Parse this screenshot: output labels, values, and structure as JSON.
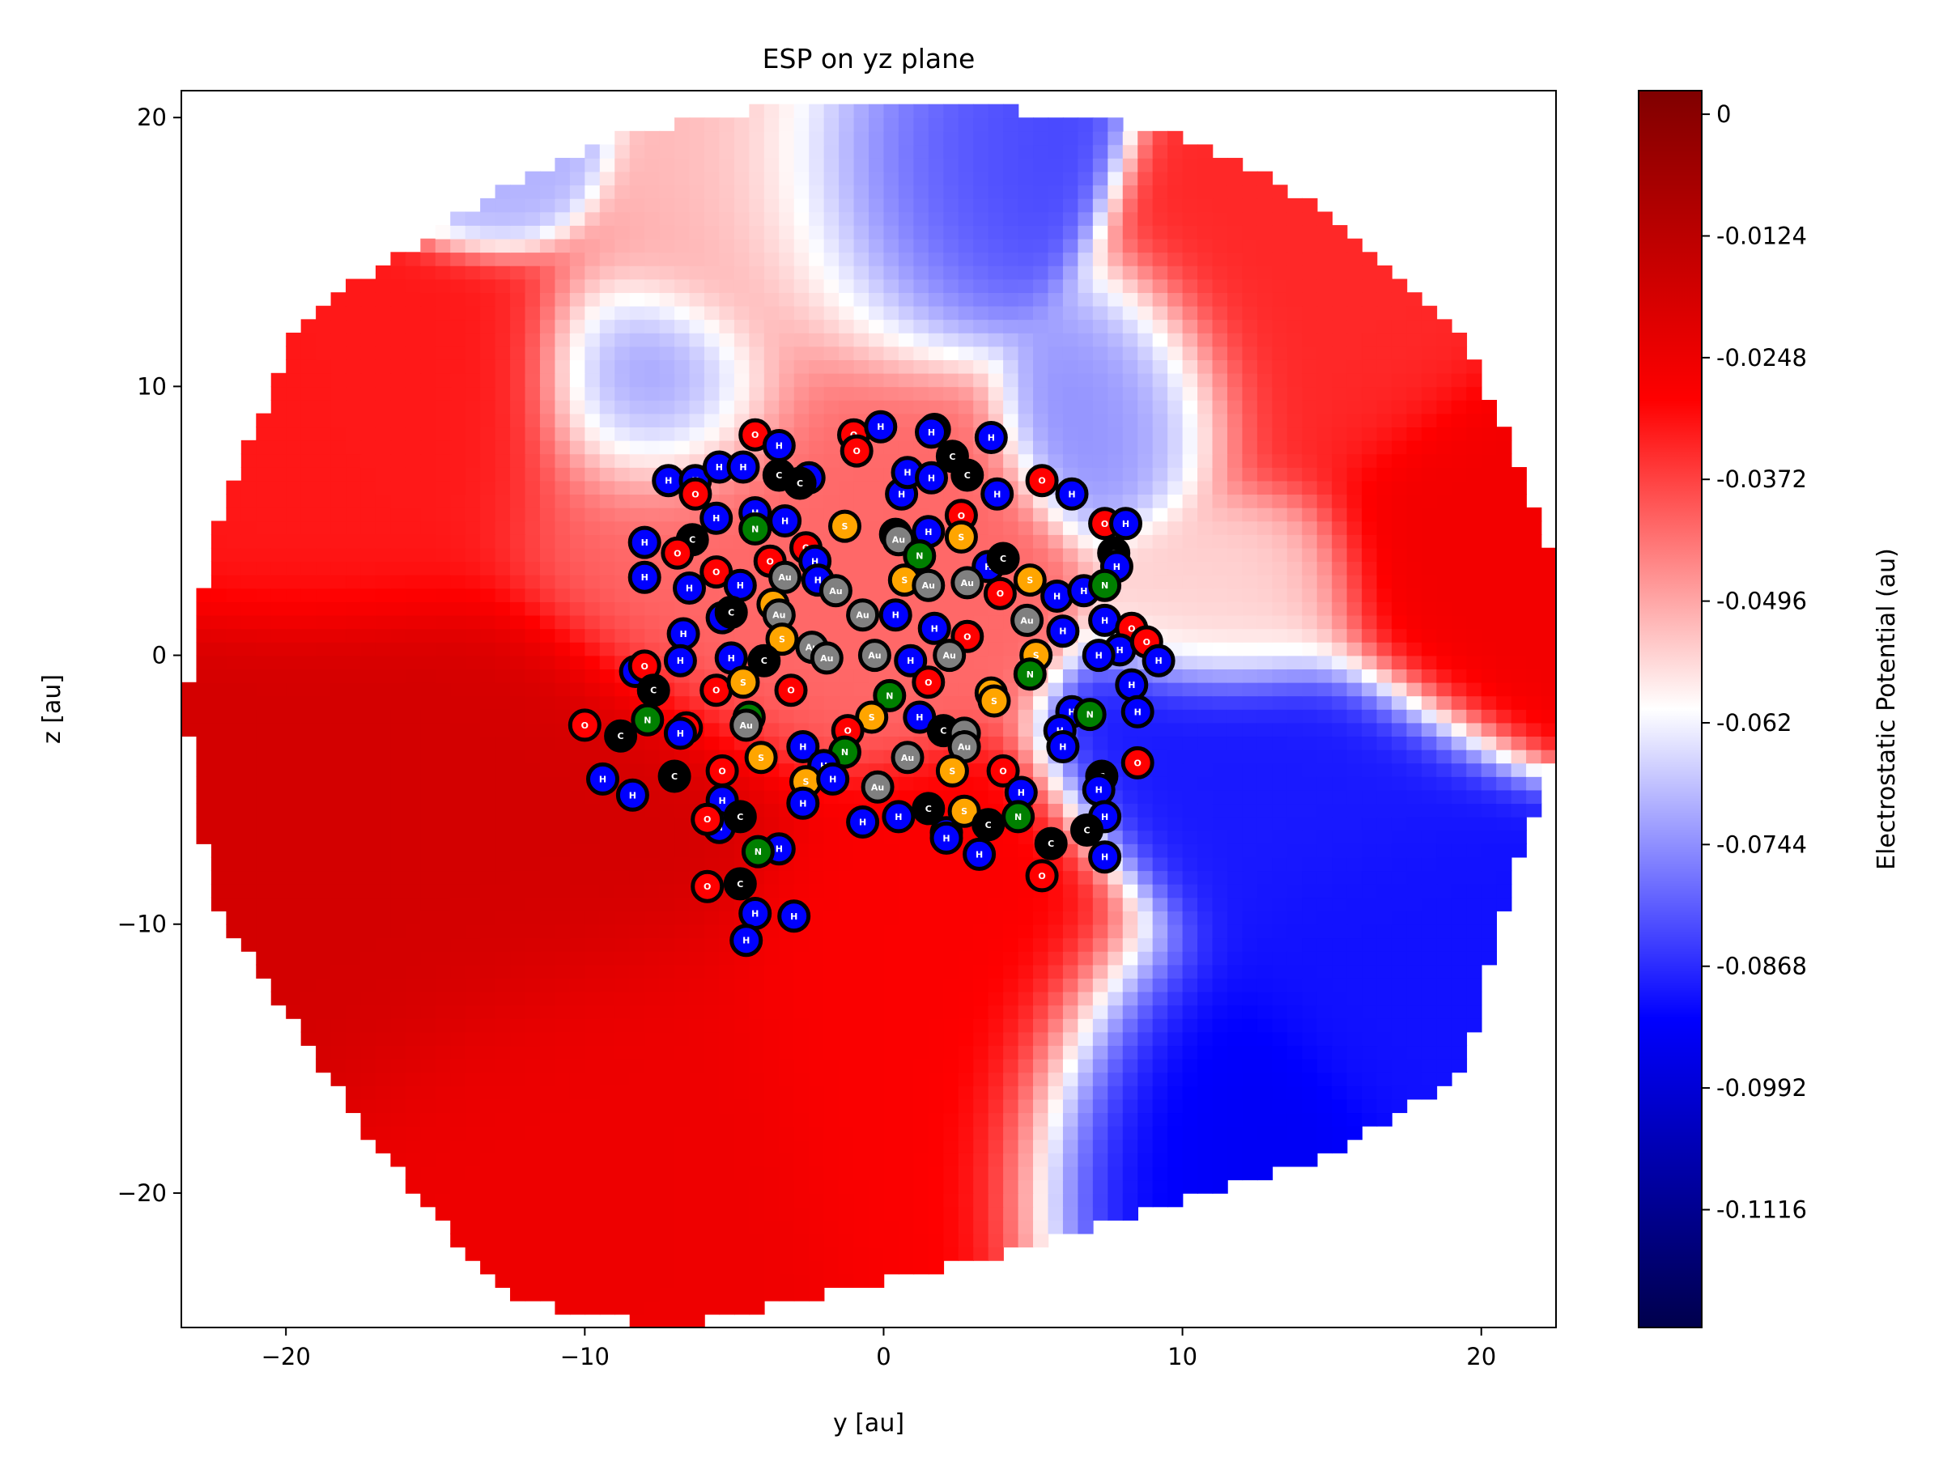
{
  "chart_data": {
    "type": "heatmap",
    "title": "ESP on yz plane",
    "xlabel": "y [au]",
    "ylabel": "z [au]",
    "xlim": [
      -23.5,
      22.5
    ],
    "ylim": [
      -25,
      21
    ],
    "xticks": [
      -20,
      -10,
      0,
      10,
      20
    ],
    "yticks": [
      -20,
      -10,
      0,
      10,
      20
    ],
    "grid": false,
    "colormap": "seismic",
    "colors": {
      "low": "#00004c",
      "mid_low": "#0000ff",
      "mid": "#ffffff",
      "mid_high": "#ff0000",
      "high": "#800000",
      "axes": "#000000",
      "background": "#ffffff"
    },
    "colorbar": {
      "label": "Electrostatic Potential (au)",
      "range": [
        -0.1236,
        0.0024
      ],
      "ticks": [
        0,
        -0.0124,
        -0.0248,
        -0.0372,
        -0.0496,
        -0.062,
        -0.0744,
        -0.0868,
        -0.0992,
        -0.1116
      ],
      "tick_labels": [
        "0",
        "-0.0124",
        "-0.0248",
        "-0.0372",
        "-0.0496",
        "-0.062",
        "-0.0744",
        "-0.0868",
        "-0.0992",
        "-0.1116"
      ]
    },
    "atom_colors": {
      "H": "#0000ff",
      "C": "#000000",
      "N": "#008000",
      "O": "#ff0000",
      "S": "#ffa500",
      "Au": "#808080"
    },
    "field_centers": [
      {
        "y": -14.5,
        "z": -7.5,
        "v": -0.0182,
        "s": 5.5
      },
      {
        "y": -9.5,
        "z": -17,
        "v": -0.025,
        "s": 4.5
      },
      {
        "y": 2,
        "z": -14,
        "v": -0.028,
        "s": 4.5
      },
      {
        "y": 19.5,
        "z": 3.5,
        "v": -0.026,
        "s": 3.5
      },
      {
        "y": -17,
        "z": 8,
        "v": -0.032,
        "s": 4
      },
      {
        "y": -4.5,
        "z": 6,
        "v": -0.042,
        "s": 5
      },
      {
        "y": 13.5,
        "z": 11,
        "v": -0.034,
        "s": 3.5
      },
      {
        "y": -2.5,
        "z": 15,
        "v": -0.052,
        "s": 3.5
      },
      {
        "y": 13.5,
        "z": -5,
        "v": -0.089,
        "s": 3.5
      },
      {
        "y": 9.5,
        "z": -16.5,
        "v": -0.094,
        "s": 3.5
      },
      {
        "y": 0.5,
        "z": 16,
        "v": -0.085,
        "s": 3
      },
      {
        "y": -7,
        "z": 9.5,
        "v": -0.082,
        "s": 2.5
      },
      {
        "y": 8.5,
        "z": 9.5,
        "v": -0.075,
        "s": 2.5
      },
      {
        "y": -13.5,
        "z": 19,
        "v": -0.07,
        "s": 2
      },
      {
        "y": 12.5,
        "z": 2.5,
        "v": -0.055,
        "s": 2.5
      },
      {
        "y": 16.5,
        "z": -11,
        "v": -0.09,
        "s": 3.5
      }
    ],
    "atoms": [
      {
        "el": "O",
        "y": -4.3,
        "z": 8.2
      },
      {
        "el": "H",
        "y": -3.5,
        "z": 7.8
      },
      {
        "el": "O",
        "y": -1.0,
        "z": 8.2
      },
      {
        "el": "O",
        "y": -0.9,
        "z": 7.6
      },
      {
        "el": "H",
        "y": -0.1,
        "z": 8.5
      },
      {
        "el": "H",
        "y": 1.7,
        "z": 8.4
      },
      {
        "el": "H",
        "y": 1.6,
        "z": 8.3
      },
      {
        "el": "H",
        "y": 3.6,
        "z": 8.1
      },
      {
        "el": "C",
        "y": 2.3,
        "z": 7.4
      },
      {
        "el": "H",
        "y": -7.2,
        "z": 6.5
      },
      {
        "el": "H",
        "y": -6.3,
        "z": 6.5
      },
      {
        "el": "H",
        "y": -5.5,
        "z": 7.0
      },
      {
        "el": "H",
        "y": -4.7,
        "z": 7.0
      },
      {
        "el": "C",
        "y": -3.5,
        "z": 6.7
      },
      {
        "el": "H",
        "y": -2.5,
        "z": 6.6
      },
      {
        "el": "C",
        "y": -2.8,
        "z": 6.4
      },
      {
        "el": "H",
        "y": 0.6,
        "z": 6.0
      },
      {
        "el": "H",
        "y": 0.8,
        "z": 6.8
      },
      {
        "el": "H",
        "y": 1.6,
        "z": 6.6
      },
      {
        "el": "C",
        "y": 2.8,
        "z": 6.7
      },
      {
        "el": "H",
        "y": 3.8,
        "z": 6.0
      },
      {
        "el": "O",
        "y": 5.3,
        "z": 6.5
      },
      {
        "el": "H",
        "y": 6.3,
        "z": 6.0
      },
      {
        "el": "O",
        "y": -6.3,
        "z": 6.0
      },
      {
        "el": "H",
        "y": -5.6,
        "z": 5.1
      },
      {
        "el": "H",
        "y": -4.3,
        "z": 5.3
      },
      {
        "el": "H",
        "y": -3.3,
        "z": 5.0
      },
      {
        "el": "S",
        "y": -1.3,
        "z": 4.8
      },
      {
        "el": "C",
        "y": 0.4,
        "z": 4.5
      },
      {
        "el": "H",
        "y": 1.5,
        "z": 4.6
      },
      {
        "el": "O",
        "y": 2.6,
        "z": 5.2
      },
      {
        "el": "O",
        "y": 7.4,
        "z": 4.9
      },
      {
        "el": "H",
        "y": 8.1,
        "z": 4.9
      },
      {
        "el": "H",
        "y": -8.0,
        "z": 4.2
      },
      {
        "el": "C",
        "y": -6.4,
        "z": 4.3
      },
      {
        "el": "N",
        "y": -4.3,
        "z": 4.7
      },
      {
        "el": "O",
        "y": -3.8,
        "z": 3.5
      },
      {
        "el": "O",
        "y": -2.6,
        "z": 4.0
      },
      {
        "el": "H",
        "y": -2.3,
        "z": 3.5
      },
      {
        "el": "Au",
        "y": 0.5,
        "z": 4.3
      },
      {
        "el": "S",
        "y": 2.6,
        "z": 4.4
      },
      {
        "el": "N",
        "y": 1.2,
        "z": 3.7
      },
      {
        "el": "H",
        "y": 3.5,
        "z": 3.3
      },
      {
        "el": "C",
        "y": 4.0,
        "z": 3.6
      },
      {
        "el": "C",
        "y": 7.7,
        "z": 3.8
      },
      {
        "el": "H",
        "y": 7.8,
        "z": 3.3
      },
      {
        "el": "O",
        "y": -6.9,
        "z": 3.8
      },
      {
        "el": "O",
        "y": -5.6,
        "z": 3.1
      },
      {
        "el": "H",
        "y": -8.0,
        "z": 2.9
      },
      {
        "el": "H",
        "y": -6.5,
        "z": 2.5
      },
      {
        "el": "H",
        "y": -4.8,
        "z": 2.6
      },
      {
        "el": "Au",
        "y": -3.3,
        "z": 2.9
      },
      {
        "el": "H",
        "y": -2.2,
        "z": 2.8
      },
      {
        "el": "Au",
        "y": -1.6,
        "z": 2.4
      },
      {
        "el": "S",
        "y": 0.7,
        "z": 2.8
      },
      {
        "el": "Au",
        "y": 1.5,
        "z": 2.6
      },
      {
        "el": "Au",
        "y": 2.8,
        "z": 2.7
      },
      {
        "el": "O",
        "y": 3.9,
        "z": 2.3
      },
      {
        "el": "S",
        "y": 4.9,
        "z": 2.8
      },
      {
        "el": "H",
        "y": 5.8,
        "z": 2.2
      },
      {
        "el": "H",
        "y": 6.7,
        "z": 2.4
      },
      {
        "el": "N",
        "y": 7.4,
        "z": 2.6
      },
      {
        "el": "S",
        "y": -3.7,
        "z": 1.9
      },
      {
        "el": "H",
        "y": -5.4,
        "z": 1.4
      },
      {
        "el": "C",
        "y": -5.1,
        "z": 1.6
      },
      {
        "el": "Au",
        "y": -3.5,
        "z": 1.5
      },
      {
        "el": "Au",
        "y": -0.7,
        "z": 1.5
      },
      {
        "el": "H",
        "y": 0.4,
        "z": 1.5
      },
      {
        "el": "Au",
        "y": 4.8,
        "z": 1.3
      },
      {
        "el": "H",
        "y": 6.0,
        "z": 0.9
      },
      {
        "el": "H",
        "y": 7.4,
        "z": 1.3
      },
      {
        "el": "O",
        "y": 8.3,
        "z": 1.0
      },
      {
        "el": "H",
        "y": -6.7,
        "z": 0.8
      },
      {
        "el": "S",
        "y": -3.4,
        "z": 0.6
      },
      {
        "el": "Au",
        "y": -2.4,
        "z": 0.3
      },
      {
        "el": "H",
        "y": 1.7,
        "z": 1.0
      },
      {
        "el": "O",
        "y": 2.8,
        "z": 0.7
      },
      {
        "el": "H",
        "y": 7.9,
        "z": 0.2
      },
      {
        "el": "O",
        "y": 8.8,
        "z": 0.5
      },
      {
        "el": "H",
        "y": -8.3,
        "z": -0.6
      },
      {
        "el": "H",
        "y": -6.8,
        "z": -0.2
      },
      {
        "el": "H",
        "y": -5.1,
        "z": -0.1
      },
      {
        "el": "C",
        "y": -4.0,
        "z": -0.2
      },
      {
        "el": "Au",
        "y": -1.9,
        "z": -0.1
      },
      {
        "el": "Au",
        "y": -0.3,
        "z": 0.0
      },
      {
        "el": "H",
        "y": 0.9,
        "z": -0.2
      },
      {
        "el": "Au",
        "y": 2.2,
        "z": 0.0
      },
      {
        "el": "S",
        "y": 5.1,
        "z": 0.0
      },
      {
        "el": "H",
        "y": 7.2,
        "z": 0.0
      },
      {
        "el": "H",
        "y": 9.2,
        "z": -0.2
      },
      {
        "el": "O",
        "y": -8.0,
        "z": -0.4
      },
      {
        "el": "C",
        "y": -7.7,
        "z": -1.3
      },
      {
        "el": "O",
        "y": -5.6,
        "z": -1.3
      },
      {
        "el": "S",
        "y": -4.7,
        "z": -1.0
      },
      {
        "el": "O",
        "y": -3.1,
        "z": -1.3
      },
      {
        "el": "N",
        "y": 0.2,
        "z": -1.5
      },
      {
        "el": "O",
        "y": 1.5,
        "z": -1.0
      },
      {
        "el": "S",
        "y": 3.6,
        "z": -1.4
      },
      {
        "el": "N",
        "y": 4.9,
        "z": -0.7
      },
      {
        "el": "H",
        "y": 8.3,
        "z": -1.1
      },
      {
        "el": "O",
        "y": -10.0,
        "z": -2.6
      },
      {
        "el": "C",
        "y": -8.8,
        "z": -3.0
      },
      {
        "el": "N",
        "y": -7.9,
        "z": -2.4
      },
      {
        "el": "O",
        "y": -6.6,
        "z": -2.7
      },
      {
        "el": "N",
        "y": -4.5,
        "z": -2.3
      },
      {
        "el": "S",
        "y": -0.4,
        "z": -2.3
      },
      {
        "el": "H",
        "y": 1.2,
        "z": -2.3
      },
      {
        "el": "S",
        "y": 3.7,
        "z": -1.7
      },
      {
        "el": "H",
        "y": 6.3,
        "z": -2.1
      },
      {
        "el": "N",
        "y": 6.9,
        "z": -2.2
      },
      {
        "el": "H",
        "y": 8.5,
        "z": -2.1
      },
      {
        "el": "H",
        "y": -6.8,
        "z": -2.9
      },
      {
        "el": "Au",
        "y": -4.6,
        "z": -2.6
      },
      {
        "el": "H",
        "y": -2.7,
        "z": -3.4
      },
      {
        "el": "O",
        "y": -1.2,
        "z": -2.8
      },
      {
        "el": "C",
        "y": 2.0,
        "z": -2.8
      },
      {
        "el": "Au",
        "y": 2.7,
        "z": -2.9
      },
      {
        "el": "H",
        "y": 5.9,
        "z": -2.8
      },
      {
        "el": "H",
        "y": -9.4,
        "z": -4.6
      },
      {
        "el": "H",
        "y": -8.4,
        "z": -5.2
      },
      {
        "el": "C",
        "y": -7.0,
        "z": -4.5
      },
      {
        "el": "O",
        "y": -5.4,
        "z": -4.3
      },
      {
        "el": "S",
        "y": -4.1,
        "z": -3.8
      },
      {
        "el": "N",
        "y": -1.3,
        "z": -3.6
      },
      {
        "el": "H",
        "y": -2.0,
        "z": -4.1
      },
      {
        "el": "Au",
        "y": 0.8,
        "z": -3.8
      },
      {
        "el": "Au",
        "y": 2.7,
        "z": -3.4
      },
      {
        "el": "S",
        "y": 2.3,
        "z": -4.3
      },
      {
        "el": "O",
        "y": 4.0,
        "z": -4.3
      },
      {
        "el": "H",
        "y": 6.0,
        "z": -3.4
      },
      {
        "el": "O",
        "y": 8.5,
        "z": -4.0
      },
      {
        "el": "H",
        "y": -5.4,
        "z": -5.4
      },
      {
        "el": "S",
        "y": -2.6,
        "z": -4.7
      },
      {
        "el": "H",
        "y": -1.7,
        "z": -4.6
      },
      {
        "el": "Au",
        "y": -0.2,
        "z": -4.9
      },
      {
        "el": "H",
        "y": 4.6,
        "z": -5.1
      },
      {
        "el": "C",
        "y": 7.3,
        "z": -4.5
      },
      {
        "el": "H",
        "y": -5.5,
        "z": -6.4
      },
      {
        "el": "C",
        "y": -4.8,
        "z": -6.0
      },
      {
        "el": "H",
        "y": -2.7,
        "z": -5.5
      },
      {
        "el": "H",
        "y": -0.7,
        "z": -6.2
      },
      {
        "el": "H",
        "y": 0.5,
        "z": -6.0
      },
      {
        "el": "C",
        "y": 1.5,
        "z": -5.7
      },
      {
        "el": "H",
        "y": 2.1,
        "z": -6.6
      },
      {
        "el": "S",
        "y": 2.7,
        "z": -5.8
      },
      {
        "el": "C",
        "y": 3.5,
        "z": -6.3
      },
      {
        "el": "N",
        "y": 4.5,
        "z": -6.0
      },
      {
        "el": "H",
        "y": 7.2,
        "z": -5.0
      },
      {
        "el": "H",
        "y": 7.4,
        "z": -6.0
      },
      {
        "el": "O",
        "y": -5.9,
        "z": -6.1
      },
      {
        "el": "H",
        "y": -3.5,
        "z": -7.2
      },
      {
        "el": "N",
        "y": -4.2,
        "z": -7.3
      },
      {
        "el": "H",
        "y": 2.1,
        "z": -6.8
      },
      {
        "el": "C",
        "y": 5.6,
        "z": -7.0
      },
      {
        "el": "C",
        "y": 6.8,
        "z": -6.5
      },
      {
        "el": "H",
        "y": 3.2,
        "z": -7.4
      },
      {
        "el": "H",
        "y": 7.4,
        "z": -7.5
      },
      {
        "el": "O",
        "y": -5.9,
        "z": -8.6
      },
      {
        "el": "C",
        "y": -4.8,
        "z": -8.5
      },
      {
        "el": "O",
        "y": 5.3,
        "z": -8.2
      },
      {
        "el": "H",
        "y": -4.3,
        "z": -9.6
      },
      {
        "el": "H",
        "y": -3.0,
        "z": -9.7
      },
      {
        "el": "H",
        "y": -4.6,
        "z": -10.6
      }
    ]
  }
}
